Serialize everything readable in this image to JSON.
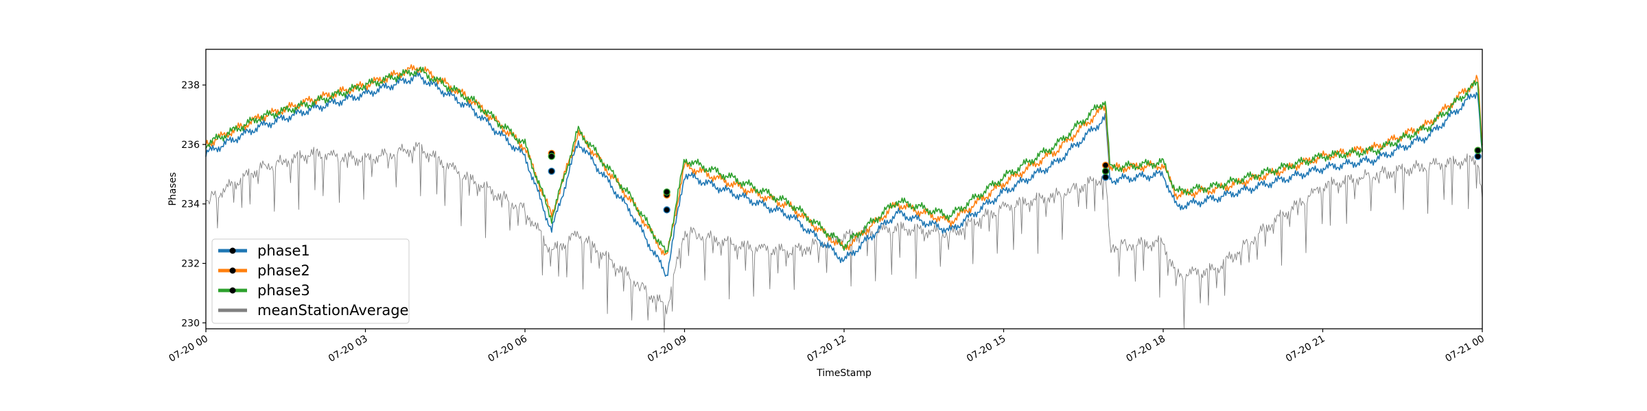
{
  "chart_data": {
    "type": "line",
    "title": "",
    "xlabel": "TimeStamp",
    "ylabel": "Phases",
    "xlim": [
      "07-20 00",
      "07-21 00"
    ],
    "ylim": [
      229.8,
      239.2
    ],
    "x_tick_labels": [
      "07-20 00",
      "07-20 03",
      "07-20 06",
      "07-20 09",
      "07-20 12",
      "07-20 15",
      "07-20 18",
      "07-20 21",
      "07-21 00"
    ],
    "y_ticks": [
      230,
      232,
      234,
      236,
      238
    ],
    "grid": false,
    "legend_position": "lower-left",
    "colors": {
      "phase1": "#1f77b4",
      "phase2": "#ff7f0e",
      "phase3": "#2ca02c",
      "meanStationAverage": "#808080",
      "marker": "#000000"
    },
    "phase_x": [
      "07-20 00",
      "07-20 01",
      "07-20 02",
      "07-20 03",
      "07-20 04",
      "07-20 05",
      "07-20 06",
      "07-20 06:30",
      "07-20 07",
      "07-20 08",
      "07-20 08:40",
      "07-20 09",
      "07-20 10",
      "07-20 11",
      "07-20 12",
      "07-20 13",
      "07-20 14",
      "07-20 15",
      "07-20 16",
      "07-20 16:55",
      "07-20 17",
      "07-20 18",
      "07-20 18:15",
      "07-20 19",
      "07-20 20",
      "07-20 21",
      "07-20 22",
      "07-20 23",
      "07-20 23:55",
      "07-21 00"
    ],
    "series": [
      {
        "name": "phase1",
        "values": [
          235.7,
          236.6,
          237.2,
          237.7,
          238.3,
          237.2,
          235.6,
          233.1,
          236.1,
          233.7,
          231.6,
          235.0,
          234.3,
          233.6,
          232.1,
          233.7,
          233.1,
          234.4,
          235.4,
          236.9,
          234.8,
          235.0,
          233.9,
          234.2,
          234.7,
          235.2,
          235.5,
          236.3,
          237.8,
          235.6
        ]
      },
      {
        "name": "phase2",
        "values": [
          236.0,
          236.9,
          237.5,
          238.0,
          238.6,
          237.5,
          235.9,
          233.6,
          236.4,
          234.1,
          232.2,
          235.3,
          234.6,
          233.9,
          232.5,
          234.0,
          233.4,
          234.7,
          235.8,
          237.3,
          235.2,
          235.3,
          234.3,
          234.5,
          235.0,
          235.6,
          235.9,
          236.7,
          238.2,
          235.9
        ]
      },
      {
        "name": "phase3",
        "values": [
          236.0,
          236.9,
          237.4,
          238.0,
          238.5,
          237.5,
          236.0,
          233.5,
          236.5,
          234.2,
          232.3,
          235.5,
          234.8,
          234.0,
          232.6,
          234.1,
          233.6,
          234.9,
          236.0,
          237.5,
          235.2,
          235.4,
          234.4,
          234.6,
          235.1,
          235.6,
          235.8,
          236.6,
          238.1,
          235.8
        ]
      },
      {
        "name": "meanStationAverage",
        "values": [
          234.1,
          235.2,
          235.7,
          235.5,
          235.9,
          234.8,
          233.8,
          232.4,
          233.0,
          231.5,
          230.5,
          233.1,
          232.6,
          232.4,
          232.9,
          233.2,
          233.0,
          233.9,
          234.3,
          234.9,
          232.6,
          232.7,
          231.6,
          231.8,
          233.3,
          234.6,
          235.0,
          235.3,
          235.5,
          234.2
        ]
      }
    ],
    "marker_points": [
      {
        "x": "07-20 06:30",
        "values": [
          235.1,
          235.7,
          235.6
        ]
      },
      {
        "x": "07-20 08:40",
        "values": [
          233.8,
          234.3,
          234.4
        ]
      },
      {
        "x": "07-20 16:55",
        "values": [
          234.9,
          235.3,
          235.1
        ]
      },
      {
        "x": "07-20 23:55",
        "values": [
          235.6,
          235.8,
          235.8
        ]
      }
    ]
  }
}
